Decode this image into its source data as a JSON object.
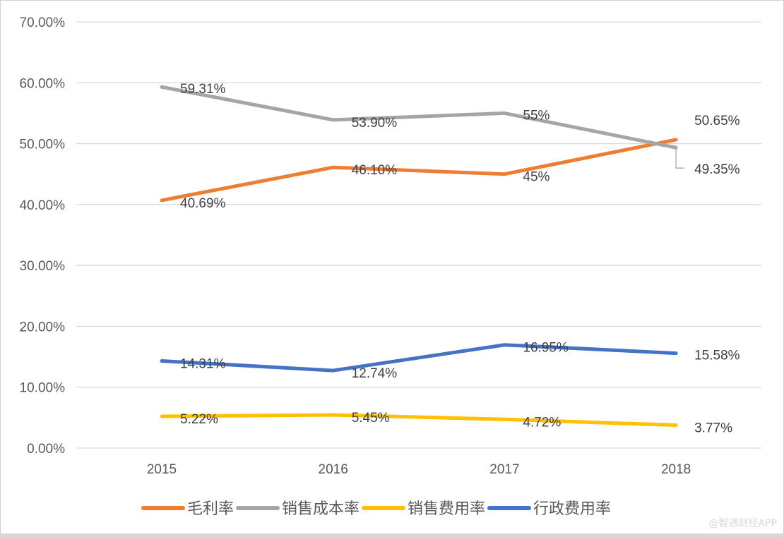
{
  "chart_data": {
    "type": "line",
    "categories": [
      "2015",
      "2016",
      "2017",
      "2018"
    ],
    "ylim": [
      0,
      70
    ],
    "yticks": [
      "0.00%",
      "10.00%",
      "20.00%",
      "30.00%",
      "40.00%",
      "50.00%",
      "60.00%",
      "70.00%"
    ],
    "grid": true,
    "legend_position": "bottom",
    "series": [
      {
        "name": "毛利率",
        "color": "#ED7D31",
        "values": [
          40.69,
          46.1,
          45,
          50.65
        ],
        "labels": [
          "40.69%",
          "46.10%",
          "45%",
          "50.65%"
        ]
      },
      {
        "name": "销售成本率",
        "color": "#A5A5A5",
        "values": [
          59.31,
          53.9,
          55,
          49.35
        ],
        "labels": [
          "59.31%",
          "53.90%",
          "55%",
          "49.35%"
        ]
      },
      {
        "name": "销售费用率",
        "color": "#FFC000",
        "values": [
          5.22,
          5.45,
          4.72,
          3.77
        ],
        "labels": [
          "5.22%",
          "5.45%",
          "4.72%",
          "3.77%"
        ]
      },
      {
        "name": "行政费用率",
        "color": "#4472C4",
        "values": [
          14.31,
          12.74,
          16.95,
          15.58
        ],
        "labels": [
          "14.31%",
          "12.74%",
          "16.95%",
          "15.58%"
        ]
      }
    ]
  },
  "watermark": "@智通财经APP"
}
